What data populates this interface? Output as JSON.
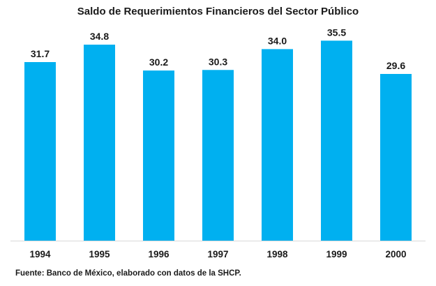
{
  "colors": {
    "bar": "#00b0f0",
    "axis": "#d9d9d9",
    "text": "#1a1a1a"
  },
  "chart_data": {
    "type": "bar",
    "title": "Saldo de Requerimientos Financieros del Sector Público",
    "categories": [
      "1994",
      "1995",
      "1996",
      "1997",
      "1998",
      "1999",
      "2000"
    ],
    "values": [
      31.7,
      34.8,
      30.2,
      30.3,
      34.0,
      35.5,
      29.6
    ],
    "value_labels": [
      "31.7",
      "34.8",
      "30.2",
      "30.3",
      "34.0",
      "35.5",
      "29.6"
    ],
    "xlabel": "",
    "ylabel": "",
    "ylim": [
      0,
      40
    ],
    "grid": false,
    "legend": "none",
    "data_labels": "above-bars",
    "source": "Fuente: Banco de México, elaborado con datos de la SHCP."
  }
}
